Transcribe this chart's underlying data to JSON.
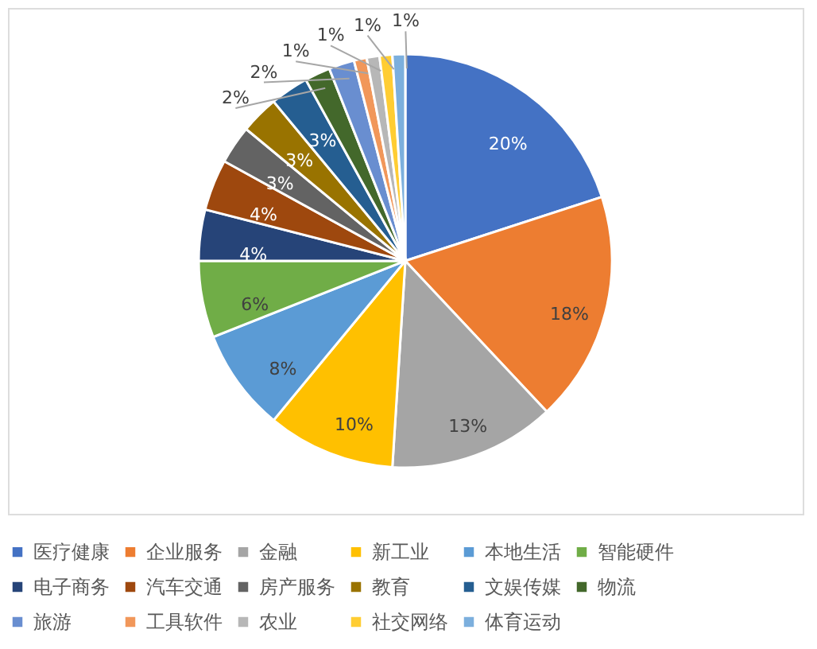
{
  "chart_data": {
    "type": "pie",
    "categories": [
      "医疗健康",
      "企业服务",
      "金融",
      "新工业",
      "本地生活",
      "智能硬件",
      "电子商务",
      "汽车交通",
      "房产服务",
      "教育",
      "文娱传媒",
      "物流",
      "旅游",
      "工具软件",
      "农业",
      "社交网络",
      "体育运动"
    ],
    "values": [
      20,
      18,
      13,
      10,
      8,
      6,
      4,
      4,
      3,
      3,
      3,
      2,
      2,
      1,
      1,
      1,
      1
    ],
    "colors": [
      "#4472c4",
      "#ed7d31",
      "#a5a5a5",
      "#ffc000",
      "#5b9bd5",
      "#70ad47",
      "#264478",
      "#9e480e",
      "#636363",
      "#997300",
      "#255e91",
      "#43682b",
      "#698ed0",
      "#f1975a",
      "#b7b7b7",
      "#ffcd33",
      "#7cafdd"
    ],
    "value_labels": [
      "20%",
      "18%",
      "13%",
      "10%",
      "8%",
      "6%",
      "4%",
      "4%",
      "3%",
      "3%",
      "3%",
      "2%",
      "2%",
      "1%",
      "1%",
      "1%",
      "1%"
    ],
    "legend": "bottom"
  }
}
